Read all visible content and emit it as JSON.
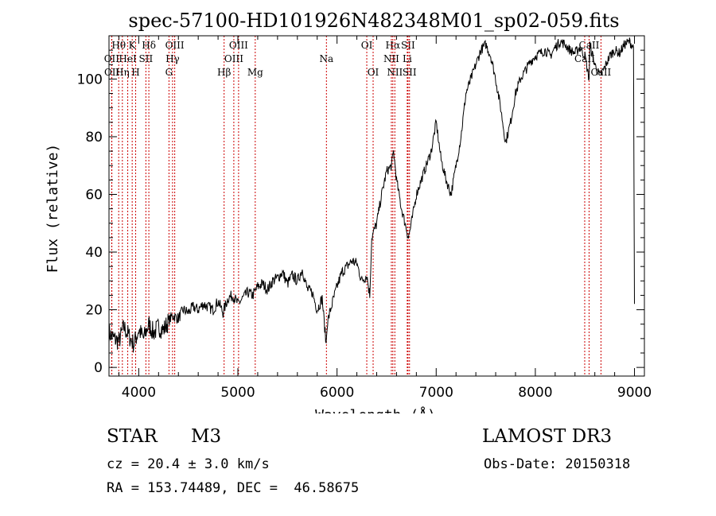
{
  "chart_data": {
    "type": "line",
    "title": "spec-57100-HD101926N482348M01_sp02-059.fits",
    "xlabel": "Wavelength (Å)",
    "ylabel": "Flux (relative)",
    "xlim": [
      3700,
      9100
    ],
    "ylim": [
      -3,
      115
    ],
    "xticks": [
      4000,
      5000,
      6000,
      7000,
      8000,
      9000
    ],
    "yticks": [
      0,
      20,
      40,
      60,
      80,
      100
    ],
    "colors": {
      "line": "#000000",
      "marker": "#cc0000",
      "axes": "#000000"
    },
    "series": [
      {
        "name": "flux",
        "x": [
          3700,
          3750,
          3800,
          3850,
          3900,
          3950,
          4000,
          4050,
          4100,
          4150,
          4200,
          4250,
          4300,
          4340,
          4400,
          4450,
          4500,
          4550,
          4600,
          4650,
          4700,
          4750,
          4800,
          4850,
          4900,
          4950,
          5000,
          5050,
          5100,
          5150,
          5200,
          5250,
          5300,
          5350,
          5400,
          5450,
          5500,
          5550,
          5600,
          5650,
          5700,
          5750,
          5800,
          5850,
          5890,
          5900,
          5920,
          5950,
          6000,
          6050,
          6100,
          6150,
          6200,
          6250,
          6300,
          6330,
          6350,
          6400,
          6450,
          6500,
          6550,
          6570,
          6600,
          6650,
          6700,
          6720,
          6750,
          6800,
          6850,
          6900,
          6950,
          7000,
          7050,
          7100,
          7150,
          7200,
          7250,
          7300,
          7350,
          7400,
          7450,
          7500,
          7550,
          7600,
          7650,
          7700,
          7750,
          7800,
          7850,
          7900,
          7950,
          8000,
          8050,
          8100,
          8150,
          8200,
          8250,
          8300,
          8350,
          8400,
          8450,
          8500,
          8542,
          8550,
          8600,
          8650,
          8700,
          8750,
          8800,
          8850,
          8900,
          8950,
          8990,
          9000
        ],
        "y": [
          12,
          10,
          9,
          14,
          11,
          8,
          13,
          10,
          15,
          12,
          14,
          13,
          16,
          18,
          17,
          20,
          19,
          21,
          20,
          22,
          21,
          20,
          23,
          19,
          24,
          25,
          22,
          24,
          26,
          25,
          28,
          29,
          27,
          30,
          31,
          33,
          29,
          32,
          30,
          34,
          27,
          26,
          20,
          24,
          8,
          15,
          18,
          22,
          28,
          33,
          35,
          37,
          36,
          30,
          32,
          25,
          45,
          50,
          60,
          68,
          70,
          75,
          65,
          55,
          48,
          45,
          50,
          60,
          65,
          70,
          75,
          85,
          72,
          65,
          60,
          70,
          80,
          95,
          100,
          105,
          110,
          112,
          108,
          100,
          90,
          78,
          85,
          95,
          100,
          103,
          106,
          108,
          109,
          110,
          108,
          111,
          113,
          112,
          110,
          109,
          111,
          108,
          100,
          112,
          105,
          101,
          104,
          108,
          110,
          109,
          112,
          113,
          111,
          22
        ]
      }
    ],
    "lines": [
      {
        "label": "Hθ",
        "wl": 3798,
        "row": 0
      },
      {
        "label": "OII",
        "wl": 3727,
        "row": 1
      },
      {
        "label": "OII",
        "wl": 3729,
        "row": 2
      },
      {
        "label": "K",
        "wl": 3934,
        "row": 0
      },
      {
        "label": "HeI",
        "wl": 3889,
        "row": 1
      },
      {
        "label": "Hη",
        "wl": 3835,
        "row": 2
      },
      {
        "label": "Hδ",
        "wl": 4102,
        "row": 0
      },
      {
        "label": "SII",
        "wl": 4072,
        "row": 1
      },
      {
        "label": "H",
        "wl": 3969,
        "row": 2
      },
      {
        "label": "OIII",
        "wl": 4363,
        "row": 0
      },
      {
        "label": "Hγ",
        "wl": 4341,
        "row": 1
      },
      {
        "label": "G",
        "wl": 4305,
        "row": 2
      },
      {
        "label": "OIII",
        "wl": 5007,
        "row": 0
      },
      {
        "label": "OIII",
        "wl": 4959,
        "row": 1
      },
      {
        "label": "Hβ",
        "wl": 4861,
        "row": 2
      },
      {
        "label": "Mg",
        "wl": 5175,
        "row": 2
      },
      {
        "label": "Na",
        "wl": 5893,
        "row": 1
      },
      {
        "label": "OI",
        "wl": 6300,
        "row": 0
      },
      {
        "label": "OI",
        "wl": 6364,
        "row": 2
      },
      {
        "label": "Hα",
        "wl": 6563,
        "row": 0
      },
      {
        "label": "NII",
        "wl": 6548,
        "row": 1
      },
      {
        "label": "NII",
        "wl": 6583,
        "row": 2
      },
      {
        "label": "SII",
        "wl": 6716,
        "row": 0
      },
      {
        "label": "Li",
        "wl": 6708,
        "row": 1
      },
      {
        "label": "SII",
        "wl": 6731,
        "row": 2
      },
      {
        "label": "CaII",
        "wl": 8542,
        "row": 0
      },
      {
        "label": "CaII",
        "wl": 8498,
        "row": 1
      },
      {
        "label": "CaII",
        "wl": 8662,
        "row": 2
      }
    ]
  },
  "info": {
    "object_class": "STAR",
    "subclass": "M3",
    "survey": "LAMOST DR3",
    "cz": "cz = 20.4 ± 3.0 km/s",
    "obs_date": "Obs-Date: 20150318",
    "coords": "RA = 153.74489, DEC =  46.58675"
  }
}
